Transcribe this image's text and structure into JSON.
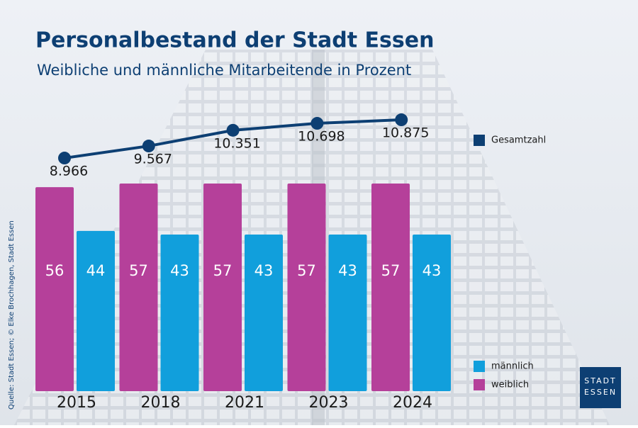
{
  "chart_data": {
    "type": "bar",
    "title": "Personalbestand der Stadt Essen",
    "subtitle": "Weibliche und männliche Mitarbeitende in Prozent",
    "categories": [
      "2015",
      "2018",
      "2021",
      "2023",
      "2024"
    ],
    "series": [
      {
        "name": "weiblich",
        "color": "#b5409a",
        "values": [
          56,
          57,
          57,
          57,
          57
        ]
      },
      {
        "name": "männlich",
        "color": "#119fdc",
        "values": [
          44,
          43,
          43,
          43,
          43
        ]
      }
    ],
    "line": {
      "name": "Gesamtzahl",
      "color": "#0d3f73",
      "values": [
        8966,
        9567,
        10351,
        10698,
        10875
      ],
      "value_labels": [
        "8.966",
        "9.567",
        "10.351",
        "10.698",
        "10.875"
      ]
    }
  },
  "source": "Quelle: Stadt Essen; © Elke Brochhagen, Stadt Essen",
  "logo": {
    "line1": "STADT",
    "line2": "ESSEN"
  }
}
